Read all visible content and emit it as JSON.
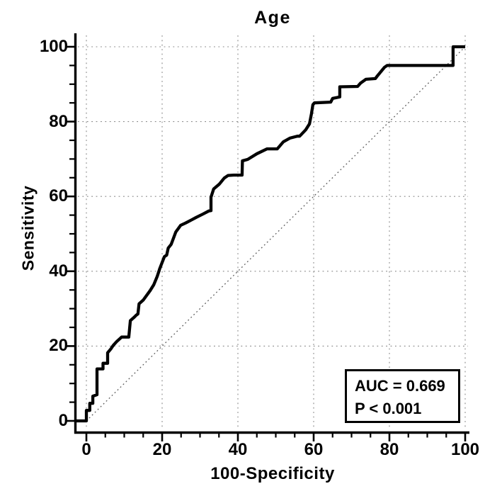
{
  "title": "Age",
  "colors": {
    "curve": "#000000",
    "axis": "#000000",
    "grid": "#878787",
    "diagonal": "#5a5a5a",
    "background": "#ffffff",
    "annotation_border": "#000000"
  },
  "annotation": {
    "auc_label": "AUC = 0.669",
    "p_label": "P < 0.001"
  },
  "chart_data": {
    "type": "line",
    "subtype": "roc-curve",
    "title": "Age",
    "xlabel": "100-Specificity",
    "ylabel": "Sensitivity",
    "xlim": [
      0,
      100
    ],
    "ylim": [
      0,
      100
    ],
    "x_ticks": [
      0,
      20,
      40,
      60,
      80,
      100
    ],
    "y_ticks": [
      0,
      20,
      40,
      60,
      80,
      100
    ],
    "minor_tick_step": 5,
    "grid": "dotted lines at major ticks, both axes",
    "legend": "none",
    "annotations": [
      {
        "text": "AUC = 0.669"
      },
      {
        "text": "P < 0.001"
      }
    ],
    "series": [
      {
        "name": "ROC curve (Age)",
        "style": "solid thick step line",
        "color": "#000000",
        "points": [
          [
            0,
            0
          ],
          [
            0,
            2.8
          ],
          [
            0.9,
            2.8
          ],
          [
            0.9,
            4.7
          ],
          [
            1.7,
            4.7
          ],
          [
            1.7,
            6.6
          ],
          [
            2.8,
            7
          ],
          [
            2.8,
            13.9
          ],
          [
            4.4,
            13.9
          ],
          [
            4.4,
            15.4
          ],
          [
            5.6,
            15.4
          ],
          [
            5.6,
            18.2
          ],
          [
            6.5,
            19.3
          ],
          [
            7.1,
            20.2
          ],
          [
            8,
            21.2
          ],
          [
            9.3,
            22.4
          ],
          [
            11.2,
            22.4
          ],
          [
            11.6,
            26.8
          ],
          [
            12.5,
            27.6
          ],
          [
            13.1,
            28.2
          ],
          [
            13.6,
            28.6
          ],
          [
            13.9,
            31.3
          ],
          [
            15,
            32.3
          ],
          [
            16.8,
            34.8
          ],
          [
            17.8,
            36.4
          ],
          [
            18.7,
            38.6
          ],
          [
            19.4,
            40.8
          ],
          [
            20.6,
            43.9
          ],
          [
            21.2,
            44.3
          ],
          [
            21.6,
            46.2
          ],
          [
            22.4,
            47.2
          ],
          [
            23.6,
            50.5
          ],
          [
            24.9,
            52.3
          ],
          [
            26.2,
            52.9
          ],
          [
            27.7,
            53.7
          ],
          [
            29,
            54.4
          ],
          [
            30.8,
            55.3
          ],
          [
            32.3,
            56.1
          ],
          [
            32.9,
            56.2
          ],
          [
            32.9,
            59.8
          ],
          [
            33.6,
            62
          ],
          [
            35.1,
            63.3
          ],
          [
            36.4,
            64.9
          ],
          [
            37.4,
            65.6
          ],
          [
            38.9,
            65.7
          ],
          [
            41.1,
            65.7
          ],
          [
            41.2,
            69.5
          ],
          [
            42.6,
            69.9
          ],
          [
            45,
            71.4
          ],
          [
            47.7,
            72.7
          ],
          [
            50.4,
            72.7
          ],
          [
            52,
            74.6
          ],
          [
            53.8,
            75.6
          ],
          [
            55.7,
            76.1
          ],
          [
            56.3,
            76.1
          ],
          [
            57.9,
            77.8
          ],
          [
            58.9,
            79.4
          ],
          [
            59.4,
            82
          ],
          [
            59.8,
            84.5
          ],
          [
            60.2,
            85
          ],
          [
            64.5,
            85.2
          ],
          [
            65,
            86.2
          ],
          [
            66.9,
            86.6
          ],
          [
            66.9,
            89.3
          ],
          [
            71.6,
            89.4
          ],
          [
            72.4,
            90.3
          ],
          [
            73.8,
            91.3
          ],
          [
            76.3,
            91.5
          ],
          [
            76.8,
            92.2
          ],
          [
            78.7,
            94.5
          ],
          [
            79.4,
            95
          ],
          [
            96.8,
            95
          ],
          [
            96.8,
            100
          ],
          [
            100,
            100
          ]
        ]
      },
      {
        "name": "Reference diagonal (no-discrimination line)",
        "style": "dotted thin line",
        "color": "#5a5a5a",
        "points": [
          [
            0,
            0
          ],
          [
            100,
            100
          ]
        ]
      }
    ]
  }
}
